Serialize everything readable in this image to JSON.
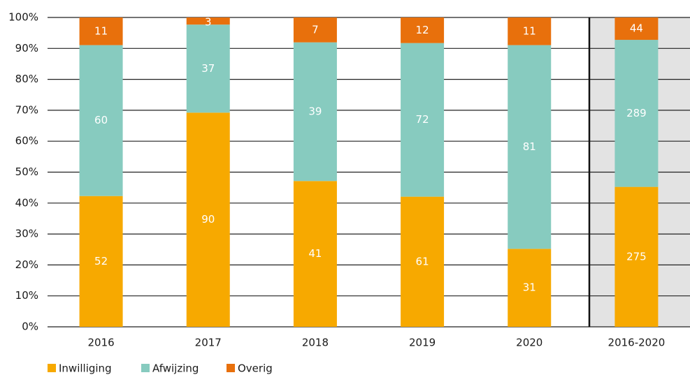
{
  "chart_data": {
    "type": "bar",
    "stack": "percent",
    "categories": [
      "2016",
      "2017",
      "2018",
      "2019",
      "2020",
      "2016-2020"
    ],
    "series": [
      {
        "name": "Inwilliging",
        "color": "#f7a900",
        "values": [
          52,
          90,
          41,
          61,
          31,
          275
        ]
      },
      {
        "name": "Afwijzing",
        "color": "#87cbbf",
        "values": [
          60,
          37,
          39,
          72,
          81,
          289
        ]
      },
      {
        "name": "Overig",
        "color": "#e8700c",
        "values": [
          11,
          3,
          7,
          12,
          11,
          44
        ]
      }
    ],
    "ylim": [
      0,
      100
    ],
    "yticks": [
      {
        "value": 0,
        "label": "0%"
      },
      {
        "value": 10,
        "label": "10%"
      },
      {
        "value": 20,
        "label": "20%"
      },
      {
        "value": 30,
        "label": "30%"
      },
      {
        "value": 40,
        "label": "40%"
      },
      {
        "value": 50,
        "label": "50%"
      },
      {
        "value": 60,
        "label": "60%"
      },
      {
        "value": 70,
        "label": "70%"
      },
      {
        "value": 80,
        "label": "80%"
      },
      {
        "value": 90,
        "label": "90%"
      },
      {
        "value": 100,
        "label": "100%"
      }
    ],
    "grid": true,
    "legend": "bottom-left"
  }
}
